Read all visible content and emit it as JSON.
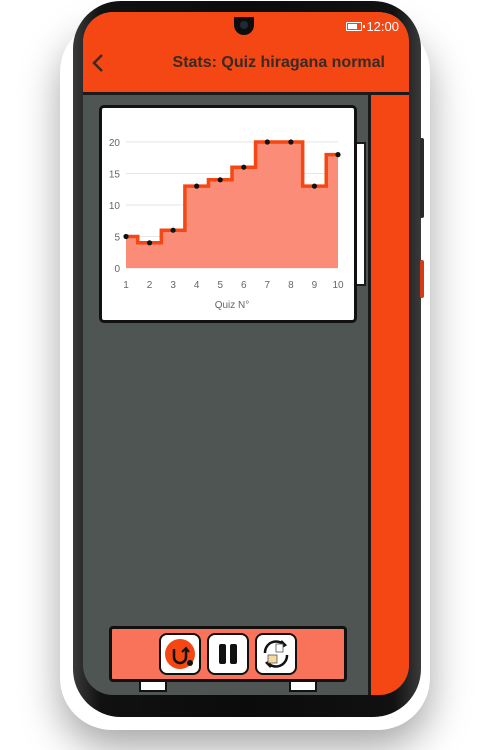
{
  "status_bar": {
    "time": "12:00"
  },
  "app_bar": {
    "title": "Stats: Quiz hiragana normal"
  },
  "controls": {
    "buttons": [
      {
        "icon": "restart-quiz-icon"
      },
      {
        "icon": "pause-icon"
      },
      {
        "icon": "switch-kana-icon"
      }
    ]
  },
  "colors": {
    "accent": "#f44714",
    "background": "#4f5552",
    "chart_line": "#f44714",
    "chart_fill": "#fb8670"
  },
  "chart_data": {
    "type": "area",
    "step": true,
    "x": [
      1,
      2,
      3,
      4,
      5,
      6,
      7,
      8,
      9,
      10
    ],
    "values": [
      5,
      4,
      6,
      13,
      14,
      16,
      20,
      20,
      13,
      18
    ],
    "xlabel": "Quiz N°",
    "ylabel": "",
    "ylim": [
      0,
      20
    ],
    "xlim": [
      1,
      10
    ],
    "yticks": [
      "0",
      "5",
      "10",
      "15",
      "20"
    ],
    "xticks": [
      "1",
      "2",
      "3",
      "4",
      "5",
      "6",
      "7",
      "8",
      "9",
      "10"
    ],
    "grid": true
  }
}
